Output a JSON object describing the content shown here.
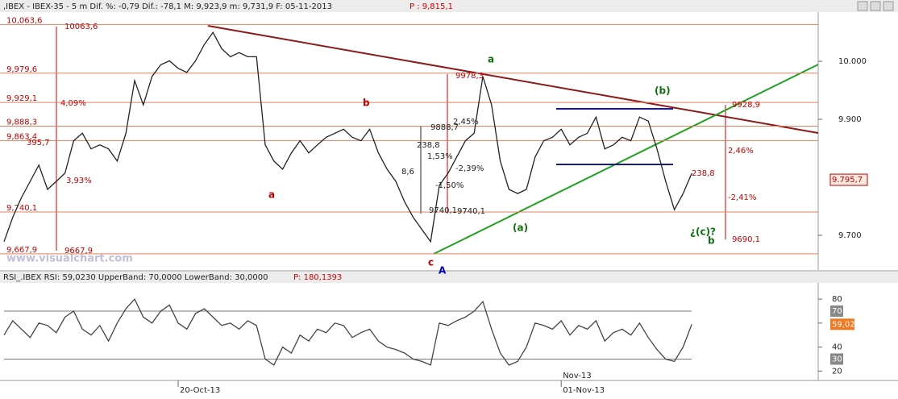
{
  "header": {
    "text": ",IBEX - IBEX-35 -  5 m Dif. %: -0,79 Dif.: -78,1 M: 9,923,9 m: 9,731,9 F: 05-11-2013",
    "price": "P : 9,815,1"
  },
  "watermark": "www.visualchart.com",
  "chart_data": [
    {
      "type": "line",
      "color": "#222222",
      "categories": [
        null,
        null,
        null,
        null,
        null,
        null,
        null,
        null,
        null,
        null,
        null,
        null,
        null,
        null,
        null,
        null,
        null,
        null,
        null,
        null,
        "20-Oct-13",
        null,
        null,
        null,
        null,
        null,
        null,
        null,
        null,
        null,
        null,
        null,
        null,
        null,
        null,
        null,
        null,
        null,
        null,
        null,
        null,
        null,
        null,
        null,
        null,
        null,
        null,
        null,
        null,
        null,
        null,
        null,
        null,
        null,
        null,
        null,
        null,
        null,
        null,
        null,
        null,
        null,
        null,
        null,
        "01-Nov-13",
        null,
        null,
        null,
        null,
        null,
        null,
        null,
        null,
        null,
        null,
        null,
        null,
        null,
        null,
        null
      ],
      "month_label": "Nov-13",
      "values": [
        9689,
        9731,
        9765,
        9793,
        9821,
        9779,
        9793,
        9807,
        9863,
        9876,
        9849,
        9856,
        9849,
        9828,
        9876,
        9967,
        9925,
        9974,
        9994,
        10001,
        9988,
        9981,
        10001,
        10029,
        10050,
        10022,
        10008,
        10015,
        10008,
        10008,
        9856,
        9828,
        9814,
        9842,
        9863,
        9842,
        9856,
        9869,
        9876,
        9883,
        9869,
        9863,
        9883,
        9842,
        9814,
        9793,
        9758,
        9731,
        9710,
        9689,
        9786,
        9807,
        9835,
        9863,
        9876,
        9974,
        9925,
        9828,
        9779,
        9772,
        9779,
        9835,
        9863,
        9869,
        9883,
        9856,
        9869,
        9876,
        9904,
        9849,
        9856,
        9869,
        9863,
        9904,
        9897,
        9849,
        9793,
        9744,
        9772,
        9807
      ],
      "ylim": [
        9640,
        10085
      ],
      "yticks": [
        {
          "value": 10000,
          "label": "10.000"
        },
        {
          "value": 9900,
          "label": "9.900"
        },
        {
          "value": 9700,
          "label": "9.700"
        }
      ],
      "last_value": {
        "value": 9795.7,
        "label": "9.795,7"
      },
      "levels": [
        {
          "value": 10063.6,
          "label": "10,063,6"
        },
        {
          "value": 9979.6,
          "label": "9,979,6"
        },
        {
          "value": 9929.1,
          "label": "9,929,1"
        },
        {
          "value": 9888.3,
          "label": "9,888,3"
        },
        {
          "value": 9863.4,
          "label": "9,863,4"
        },
        {
          "value": 9740.1,
          "label": "9,740,1"
        },
        {
          "value": 9667.9,
          "label": "9,667,9"
        }
      ],
      "annotations": [
        {
          "text": "10063,6",
          "color": "#c00000"
        },
        {
          "text": "9978,3",
          "color": "#c00000"
        },
        {
          "text": "9888,7",
          "color": "#222222"
        },
        {
          "text": "238,8",
          "color": "#222222"
        },
        {
          "text": "2,45%",
          "color": "#222222"
        },
        {
          "text": "1,53%",
          "color": "#222222"
        },
        {
          "text": "-2,39%",
          "color": "#222222"
        },
        {
          "text": "-1,50%",
          "color": "#222222"
        },
        {
          "text": "8,6",
          "color": "#222222"
        },
        {
          "text": "9740,1",
          "color": "#222222"
        },
        {
          "text": "9740,1",
          "color": "#222222"
        },
        {
          "text": "9667,9",
          "color": "#c00000"
        },
        {
          "text": "4,09%",
          "color": "#c00000"
        },
        {
          "text": "3,93%",
          "color": "#c00000"
        },
        {
          "text": "395,7",
          "color": "#c00000"
        },
        {
          "text": "a",
          "color": "#c00000"
        },
        {
          "text": "b",
          "color": "#c00000"
        },
        {
          "text": "c",
          "color": "#c00000"
        },
        {
          "text": "A",
          "color": "#0000c0"
        },
        {
          "text": "a",
          "color": "#107010"
        },
        {
          "text": "(b)",
          "color": "#107010"
        },
        {
          "text": "(a)",
          "color": "#107010"
        },
        {
          "text": "¿(c)?",
          "color": "#107010"
        },
        {
          "text": "b",
          "color": "#107010"
        },
        {
          "text": "9928,9",
          "color": "#c00000"
        },
        {
          "text": "2,46%",
          "color": "#c00000"
        },
        {
          "text": "-2,41%",
          "color": "#c00000"
        },
        {
          "text": "9690,1",
          "color": "#c00000"
        },
        {
          "text": "238,8",
          "color": "#c00000"
        }
      ]
    },
    {
      "type": "line",
      "color": "#444444",
      "header": "RSI_.IBEX RSI: 59,0230 UpperBand: 70,0000 LowerBand: 30,0000",
      "header_price": "P: 180,1393",
      "values": [
        50,
        62,
        55,
        48,
        60,
        58,
        52,
        65,
        70,
        55,
        50,
        58,
        45,
        60,
        72,
        80,
        65,
        60,
        70,
        75,
        60,
        55,
        68,
        72,
        65,
        58,
        60,
        55,
        62,
        58,
        30,
        25,
        40,
        35,
        50,
        45,
        55,
        52,
        60,
        58,
        48,
        52,
        55,
        45,
        40,
        38,
        35,
        30,
        28,
        25,
        60,
        58,
        62,
        65,
        70,
        78,
        55,
        35,
        25,
        28,
        40,
        60,
        58,
        55,
        62,
        50,
        58,
        55,
        62,
        45,
        52,
        55,
        50,
        60,
        48,
        38,
        30,
        28,
        40,
        59
      ],
      "ylim": [
        13.5,
        93.5
      ],
      "yticks": [
        20,
        40,
        60,
        80
      ],
      "bands": [
        {
          "value": 70,
          "label": "70"
        },
        {
          "value": 30,
          "label": "30"
        }
      ],
      "last_value": {
        "value": 59.02,
        "label": "59,02"
      }
    }
  ]
}
